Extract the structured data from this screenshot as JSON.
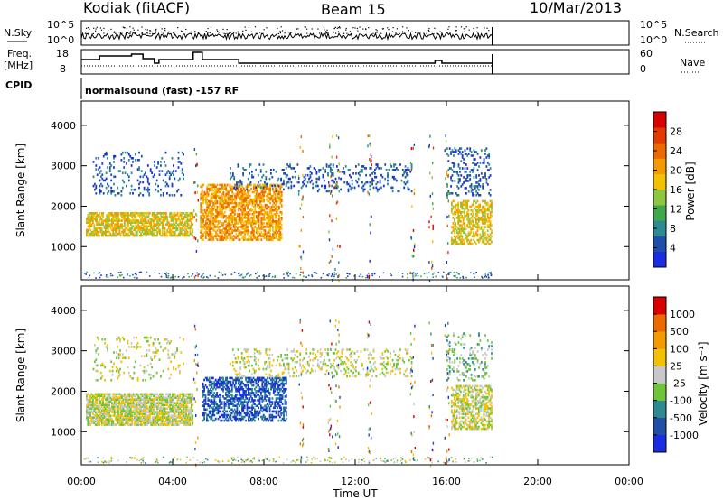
{
  "header": {
    "station": "Kodiak (fitACF)",
    "beam": "Beam 15",
    "date": "10/Mar/2013"
  },
  "top_panels": {
    "nsky": {
      "label": "N.Sky",
      "ticks": [
        "10^5",
        "10^0"
      ]
    },
    "nsearch": {
      "label": "N.Search",
      "ticks": [
        "10^5",
        "10^0"
      ]
    },
    "freq": {
      "label_line1": "Freq.",
      "label_line2": "[MHz]",
      "ticks": [
        "18",
        "8"
      ]
    },
    "nave": {
      "label": "Nave",
      "ticks": [
        "60",
        "0"
      ]
    },
    "cpid": {
      "label": "CPID",
      "text": "normalsound (fast) -157 RF"
    }
  },
  "colorbars": {
    "power": {
      "label": "Power [dB]",
      "ticks": [
        "28",
        "24",
        "20",
        "16",
        "12",
        "8",
        "4"
      ],
      "colors": [
        "#1a2de0",
        "#1f4fa8",
        "#2c8a90",
        "#3fa84a",
        "#8dc63f",
        "#f2c200",
        "#f39a00",
        "#ec6b00",
        "#e23a00",
        "#d80000"
      ]
    },
    "velocity": {
      "label": "Velocity [m s⁻¹]",
      "ticks": [
        "1000",
        "500",
        "100",
        "25",
        "-25",
        "-100",
        "-500",
        "-1000"
      ],
      "colors": [
        "#1a2de0",
        "#1f4fa8",
        "#2c8a90",
        "#6fc43a",
        "#c8c8c8",
        "#f2c200",
        "#f39a00",
        "#ec6b00",
        "#d80000"
      ]
    }
  },
  "axes": {
    "ylabel": "Slant Range [km]",
    "yticks": [
      "4000",
      "3000",
      "2000",
      "1000"
    ],
    "xlabel": "Time UT",
    "xticks": [
      "00:00",
      "04:00",
      "08:00",
      "12:00",
      "16:00",
      "20:00",
      "00:00"
    ]
  },
  "chart_data": [
    {
      "type": "heatmap",
      "title": "Power",
      "xlabel": "Time UT",
      "ylabel": "Slant Range [km]",
      "xlim": [
        0,
        24
      ],
      "ylim": [
        180,
        4600
      ],
      "data_end_hours": 18,
      "scatter_regions": [
        {
          "t0": 0.2,
          "t1": 4.9,
          "r0": 1300,
          "r1": 1900,
          "level": 5,
          "density": 0.7
        },
        {
          "t0": 0.5,
          "t1": 4.5,
          "r0": 2300,
          "r1": 3400,
          "level": 1,
          "density": 0.12
        },
        {
          "t0": 5.2,
          "t1": 8.8,
          "r0": 1200,
          "r1": 2600,
          "level": 6,
          "density": 0.6
        },
        {
          "t0": 6.5,
          "t1": 14.5,
          "r0": 2400,
          "r1": 3100,
          "level": 1,
          "density": 0.15
        },
        {
          "t0": 16.2,
          "t1": 18.0,
          "r0": 1100,
          "r1": 2200,
          "level": 5,
          "density": 0.5
        },
        {
          "t0": 16.0,
          "t1": 18.0,
          "r0": 2300,
          "r1": 3500,
          "level": 1,
          "density": 0.2
        }
      ]
    },
    {
      "type": "heatmap",
      "title": "Velocity",
      "xlabel": "Time UT",
      "ylabel": "Slant Range [km]",
      "xlim": [
        0,
        24
      ],
      "ylim": [
        180,
        4600
      ],
      "data_end_hours": 18,
      "scatter_regions": [
        {
          "t0": 0.2,
          "t1": 4.9,
          "r0": 1200,
          "r1": 2000,
          "level": 4,
          "density": 0.75
        },
        {
          "t0": 0.5,
          "t1": 4.5,
          "r0": 2300,
          "r1": 3400,
          "level": 4,
          "density": 0.1
        },
        {
          "t0": 5.3,
          "t1": 9.0,
          "r0": 1300,
          "r1": 2400,
          "level": 1,
          "density": 0.55
        },
        {
          "t0": 6.5,
          "t1": 14.5,
          "r0": 2400,
          "r1": 3100,
          "level": 4,
          "density": 0.18
        },
        {
          "t0": 16.2,
          "t1": 18.0,
          "r0": 1100,
          "r1": 2200,
          "level": 4,
          "density": 0.55
        },
        {
          "t0": 16.0,
          "t1": 18.0,
          "r0": 2300,
          "r1": 3500,
          "level": 3,
          "density": 0.15
        }
      ]
    }
  ]
}
